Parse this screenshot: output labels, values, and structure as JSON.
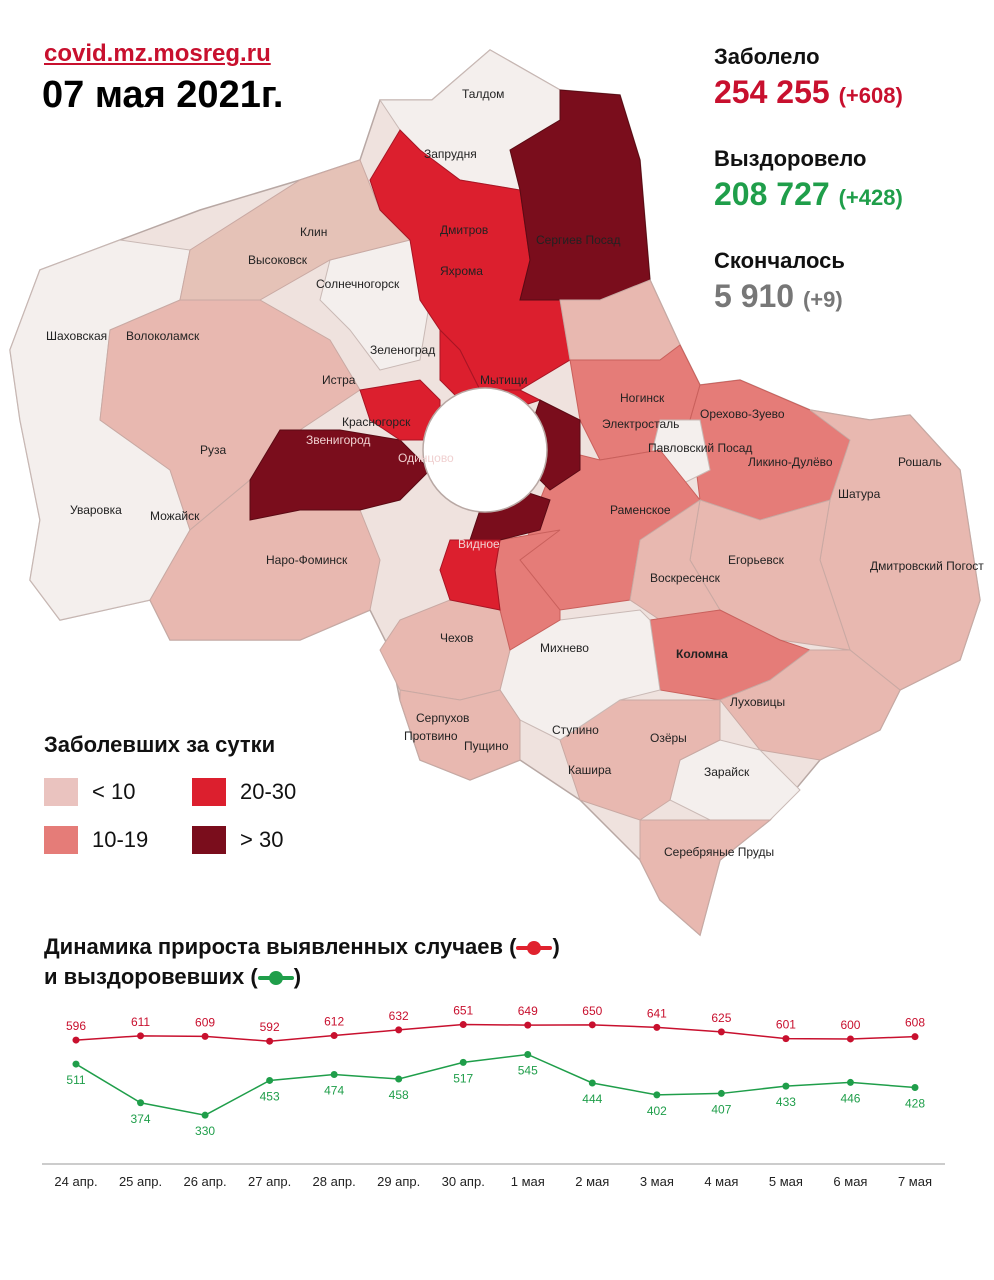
{
  "header": {
    "site": "covid.mz.mosreg.ru",
    "date": "07 мая 2021г."
  },
  "stats": {
    "sick": {
      "label": "Заболело",
      "value": "254 255",
      "delta": "(+608)",
      "color": "#c8102e"
    },
    "recovered": {
      "label": "Выздоровело",
      "value": "208 727",
      "delta": "(+428)",
      "color": "#1f9e4a"
    },
    "deceased": {
      "label": "Скончалось",
      "value": "5 910",
      "delta": "(+9)",
      "color": "#777777"
    }
  },
  "legend": {
    "title": "Заболевших за сутки",
    "items": [
      {
        "label": "< 10",
        "color": "#eac3bf"
      },
      {
        "label": "20-30",
        "color": "#dc1f2e"
      },
      {
        "label": "10-19",
        "color": "#e57c78"
      },
      {
        "label": "> 30",
        "color": "#7a0d1c"
      }
    ]
  },
  "map": {
    "labels": [
      "Талдом",
      "Запрудня",
      "Дмитров",
      "Яхрома",
      "Сергиев Посад",
      "Клин",
      "Высоковск",
      "Солнечногорск",
      "Шаховская",
      "Волоколамск",
      "Зеленоград",
      "Истра",
      "Мытищи",
      "Ногинск",
      "Электросталь",
      "Орехово-Зуево",
      "Павловский Посад",
      "Ликино-Дулёво",
      "Красногорск",
      "Звенигород",
      "Одинцово",
      "Руза",
      "Рошаль",
      "Уваровка",
      "Можайск",
      "Раменское",
      "Шатура",
      "Наро-Фоминск",
      "Видное",
      "Егорьевск",
      "Воскресенск",
      "Дмитровский Погост",
      "Чехов",
      "Михнево",
      "Коломна",
      "Серпухов",
      "Ступино",
      "Луховицы",
      "Протвино",
      "Пущино",
      "Озёры",
      "Кашира",
      "Зарайск",
      "Серебряные Пруды"
    ]
  },
  "chart": {
    "title_line1": "Динамика прироста выявленных случаев (",
    "title_line1_end": ")",
    "title_line2": "и выздоровевших (",
    "title_line2_end": ")"
  },
  "chart_data": {
    "type": "line",
    "categories": [
      "24 апр.",
      "25 апр.",
      "26 апр.",
      "27 апр.",
      "28 апр.",
      "29 апр.",
      "30 апр.",
      "1 мая",
      "2 мая",
      "3 мая",
      "4 мая",
      "5 мая",
      "6 мая",
      "7 мая"
    ],
    "series": [
      {
        "values": [
          596,
          611,
          609,
          592,
          612,
          632,
          651,
          649,
          650,
          641,
          625,
          601,
          600,
          608
        ],
        "color": "#c8102e"
      },
      {
        "values": [
          511,
          374,
          330,
          453,
          474,
          458,
          517,
          545,
          444,
          402,
          407,
          433,
          446,
          428
        ],
        "color": "#1f9e4a"
      }
    ],
    "grid": false
  }
}
